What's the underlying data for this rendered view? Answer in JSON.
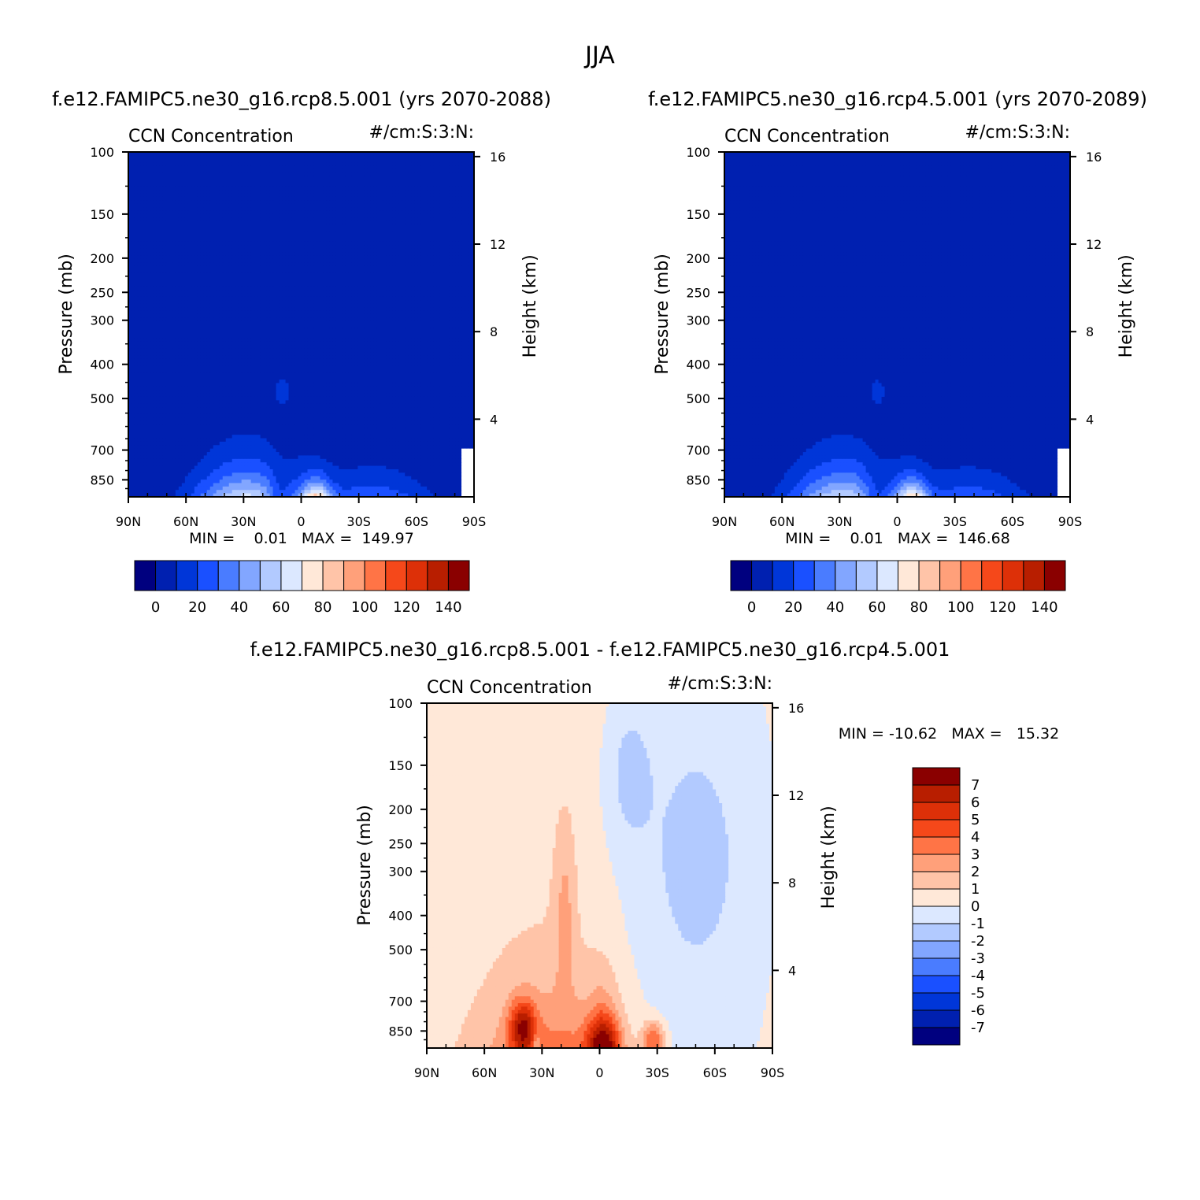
{
  "figure": {
    "title": "JJA"
  },
  "chart_data": [
    {
      "type": "contour",
      "title": "f.e12.FAMIPC5.ne30_g16.rcp8.5.001 (yrs 2070-2088)",
      "left_label": "CCN Concentration",
      "right_label": "#/cm:S:3:N:",
      "ylabel": "Pressure (mb)",
      "ylabel_right": "Height (km)",
      "x_ticks": [
        "90N",
        "60N",
        "30N",
        "0",
        "30S",
        "60S",
        "90S"
      ],
      "y_ticks": [
        "100",
        "150",
        "200",
        "250",
        "300",
        "400",
        "500",
        "700",
        "850"
      ],
      "y_right_ticks": [
        "16",
        "12",
        "8",
        "4"
      ],
      "ylim": [
        100,
        950
      ],
      "stats": "MIN =    0.01   MAX =  149.97",
      "colorbar_ticks": [
        "0",
        "20",
        "40",
        "60",
        "80",
        "100",
        "120",
        "140"
      ],
      "levels": [
        0,
        10,
        20,
        30,
        40,
        50,
        60,
        70,
        80,
        90,
        100,
        110,
        120,
        130,
        140
      ],
      "colors": [
        "#00007f",
        "#0020b0",
        "#0036d8",
        "#1a50ff",
        "#4a7cff",
        "#82a6ff",
        "#b2caff",
        "#dce8ff",
        "#ffe8d8",
        "#ffc4a8",
        "#ffa07a",
        "#ff7446",
        "#f5481a",
        "#dd3008",
        "#b81e00",
        "#8a0000"
      ],
      "range": [
        0.01,
        149.97
      ]
    },
    {
      "type": "contour",
      "title": "f.e12.FAMIPC5.ne30_g16.rcp4.5.001 (yrs 2070-2089)",
      "left_label": "CCN Concentration",
      "right_label": "#/cm:S:3:N:",
      "ylabel": "Pressure (mb)",
      "ylabel_right": "Height (km)",
      "x_ticks": [
        "90N",
        "60N",
        "30N",
        "0",
        "30S",
        "60S",
        "90S"
      ],
      "y_ticks": [
        "100",
        "150",
        "200",
        "250",
        "300",
        "400",
        "500",
        "700",
        "850"
      ],
      "y_right_ticks": [
        "16",
        "12",
        "8",
        "4"
      ],
      "ylim": [
        100,
        950
      ],
      "stats": "MIN =    0.01   MAX =  146.68",
      "colorbar_ticks": [
        "0",
        "20",
        "40",
        "60",
        "80",
        "100",
        "120",
        "140"
      ],
      "levels": [
        0,
        10,
        20,
        30,
        40,
        50,
        60,
        70,
        80,
        90,
        100,
        110,
        120,
        130,
        140
      ],
      "colors": [
        "#00007f",
        "#0020b0",
        "#0036d8",
        "#1a50ff",
        "#4a7cff",
        "#82a6ff",
        "#b2caff",
        "#dce8ff",
        "#ffe8d8",
        "#ffc4a8",
        "#ffa07a",
        "#ff7446",
        "#f5481a",
        "#dd3008",
        "#b81e00",
        "#8a0000"
      ],
      "range": [
        0.01,
        146.68
      ]
    },
    {
      "type": "contour",
      "title": "f.e12.FAMIPC5.ne30_g16.rcp8.5.001 - f.e12.FAMIPC5.ne30_g16.rcp4.5.001",
      "left_label": "CCN Concentration",
      "right_label": "#/cm:S:3:N:",
      "ylabel": "Pressure (mb)",
      "ylabel_right": "Height (km)",
      "x_ticks": [
        "90N",
        "60N",
        "30N",
        "0",
        "30S",
        "60S",
        "90S"
      ],
      "y_ticks": [
        "100",
        "150",
        "200",
        "250",
        "300",
        "400",
        "500",
        "700",
        "850"
      ],
      "y_right_ticks": [
        "16",
        "12",
        "8",
        "4"
      ],
      "ylim": [
        100,
        950
      ],
      "stats": "MIN = -10.62   MAX =   15.32",
      "colorbar_ticks": [
        "7",
        "6",
        "5",
        "4",
        "3",
        "2",
        "1",
        "0",
        "-1",
        "-2",
        "-3",
        "-4",
        "-5",
        "-6",
        "-7"
      ],
      "levels": [
        -7,
        -6,
        -5,
        -4,
        -3,
        -2,
        -1,
        0,
        1,
        2,
        3,
        4,
        5,
        6,
        7
      ],
      "colors": [
        "#8a0000",
        "#b81e00",
        "#dd3008",
        "#f5481a",
        "#ff7446",
        "#ffa07a",
        "#ffc4a8",
        "#ffe8d8",
        "#dce8ff",
        "#b2caff",
        "#82a6ff",
        "#4a7cff",
        "#1a50ff",
        "#0036d8",
        "#0020b0",
        "#00007f"
      ],
      "range": [
        -10.62,
        15.32
      ]
    }
  ]
}
